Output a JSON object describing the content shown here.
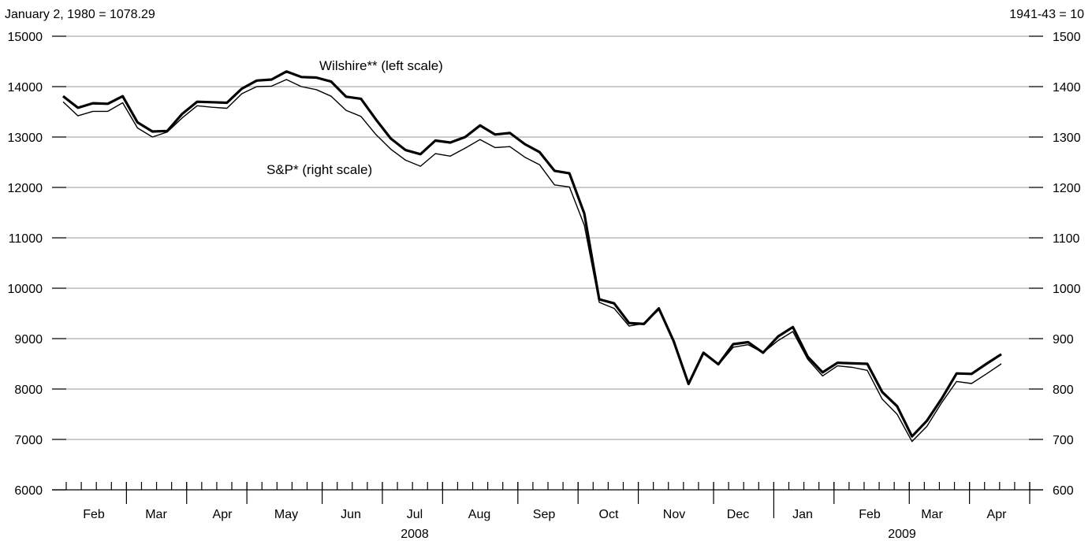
{
  "left_note": "January 2, 1980 = 1078.29",
  "right_note": "1941-43 = 10",
  "chart_data": {
    "type": "line",
    "title": "",
    "left_axis": {
      "min": 6000,
      "max": 15000,
      "ticks": [
        6000,
        7000,
        8000,
        9000,
        10000,
        11000,
        12000,
        13000,
        14000,
        15000
      ]
    },
    "right_axis": {
      "min": 600,
      "max": 1500,
      "ticks": [
        600,
        700,
        800,
        900,
        1000,
        1100,
        1200,
        1300,
        1400,
        1500
      ]
    },
    "grid": true,
    "months": [
      "Feb",
      "Mar",
      "Apr",
      "May",
      "Jun",
      "Jul",
      "Aug",
      "Sep",
      "Oct",
      "Nov",
      "Dec",
      "Jan",
      "Feb",
      "Mar",
      "Apr"
    ],
    "years": [
      "2008",
      "2009"
    ],
    "series": [
      {
        "name": "Wilshire** (left scale)",
        "axis": "left",
        "values": [
          13810,
          13580,
          13670,
          13660,
          13810,
          13290,
          13110,
          13120,
          13460,
          13700,
          13690,
          13680,
          13960,
          14120,
          14140,
          14300,
          14190,
          14180,
          14100,
          13800,
          13760,
          13350,
          12970,
          12740,
          12660,
          12930,
          12890,
          13000,
          13230,
          13050,
          13080,
          12860,
          12700,
          12330,
          12280,
          11480,
          9780,
          9700,
          9310,
          9290,
          9600,
          8950,
          8100,
          8720,
          8490,
          8890,
          8930,
          8720,
          9040,
          9230,
          8640,
          8330,
          8520,
          8510,
          8500,
          7940,
          7660,
          7060,
          7370,
          7810,
          8310,
          8300,
          8500,
          8690
        ]
      },
      {
        "name": "S&P* (right scale)",
        "axis": "right",
        "values": [
          1370,
          1342,
          1351,
          1351,
          1368,
          1318,
          1300,
          1310,
          1338,
          1362,
          1359,
          1357,
          1386,
          1400,
          1401,
          1414,
          1400,
          1394,
          1381,
          1353,
          1341,
          1305,
          1276,
          1254,
          1242,
          1267,
          1262,
          1278,
          1295,
          1279,
          1281,
          1260,
          1245,
          1205,
          1201,
          1125,
          972,
          960,
          925,
          930,
          957,
          895,
          810,
          870,
          848,
          883,
          888,
          872,
          896,
          914,
          859,
          826,
          846,
          843,
          837,
          780,
          750,
          696,
          726,
          773,
          815,
          811,
          830,
          850
        ]
      }
    ]
  }
}
